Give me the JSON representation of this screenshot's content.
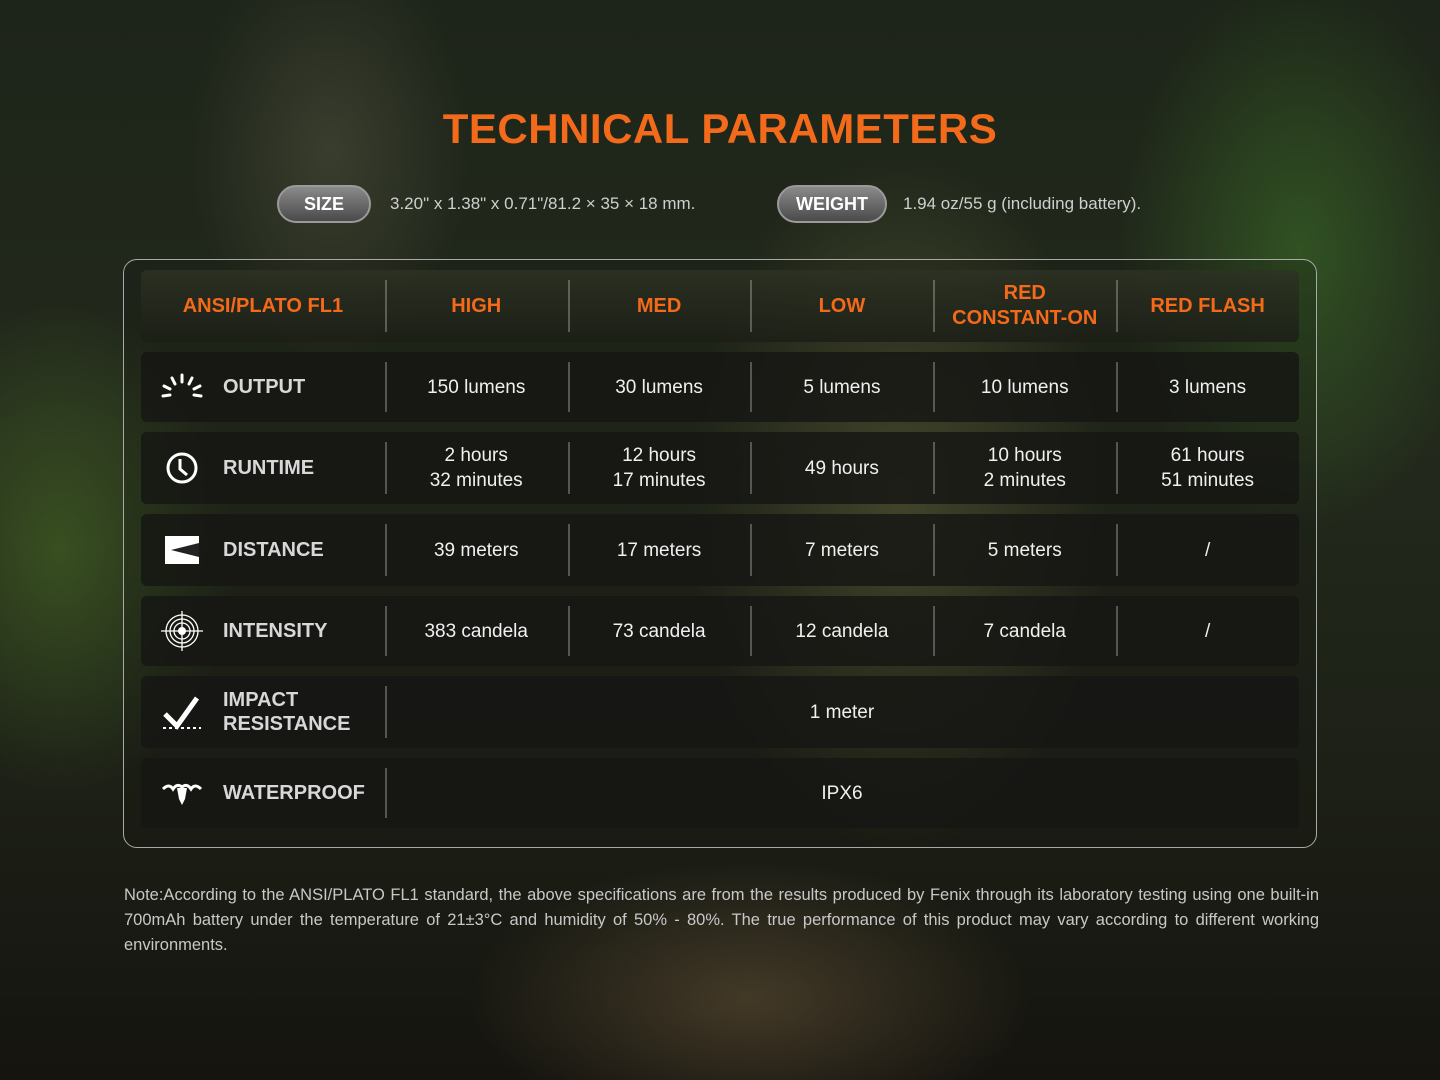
{
  "title": "TECHNICAL PARAMETERS",
  "specs": {
    "size_label": "SIZE",
    "size_value": "3.20\" x 1.38\" x 0.71\"/81.2 × 35 × 18 mm.",
    "weight_label": "WEIGHT",
    "weight_value": "1.94 oz/55 g (including battery)."
  },
  "table": {
    "headers": [
      "ANSI/PLATO FL1",
      "HIGH",
      "MED",
      "LOW",
      "RED\nCONSTANT-ON",
      "RED FLASH"
    ],
    "rows": [
      {
        "label": "OUTPUT",
        "icon": "output-icon",
        "values": [
          "150 lumens",
          "30 lumens",
          "5 lumens",
          "10 lumens",
          "3 lumens"
        ]
      },
      {
        "label": "RUNTIME",
        "icon": "clock-icon",
        "values": [
          "2 hours\n32 minutes",
          "12 hours\n17 minutes",
          "49 hours",
          "10 hours\n2 minutes",
          "61 hours\n51 minutes"
        ]
      },
      {
        "label": "DISTANCE",
        "icon": "distance-icon",
        "values": [
          "39 meters",
          "17 meters",
          "7 meters",
          "5 meters",
          "/"
        ]
      },
      {
        "label": "INTENSITY",
        "icon": "target-icon",
        "values": [
          "383 candela",
          "73 candela",
          "12 candela",
          "7 candela",
          "/"
        ]
      },
      {
        "label": "IMPACT\nRESISTANCE",
        "icon": "impact-icon",
        "value": "1 meter"
      },
      {
        "label": "WATERPROOF",
        "icon": "waterproof-icon",
        "value": "IPX6"
      }
    ]
  },
  "note": "Note:According to the ANSI/PLATO FL1 standard, the above specifications are from the results produced by Fenix through its laboratory testing using one built-in 700mAh battery under the temperature of 21±3°C and humidity of 50% - 80%. The true performance of this product may vary according to different working environments.",
  "colors": {
    "accent": "#f26a1a",
    "text": "#f0f0f0"
  }
}
